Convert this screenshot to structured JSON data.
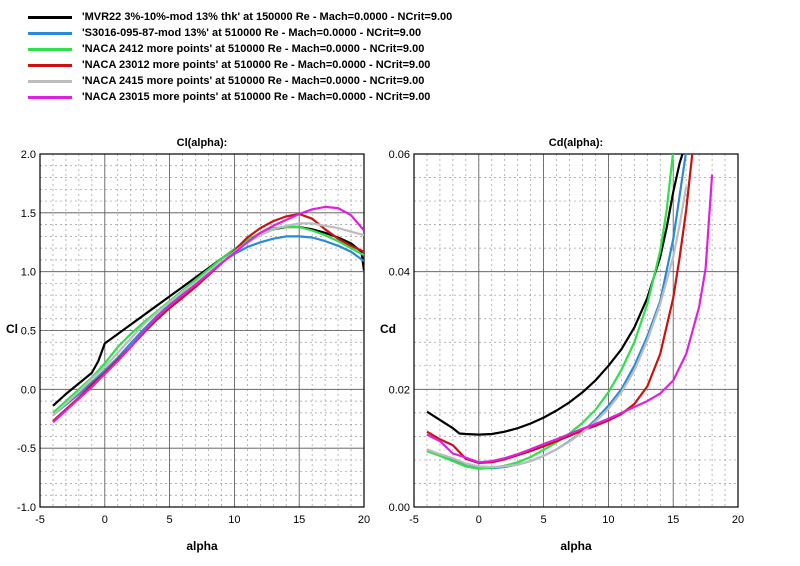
{
  "legend": [
    {
      "label": "'MVR22 3%-10%-mod 13% thk' at 150000 Re - Mach=0.0000 - NCrit=9.00",
      "color": "#000000"
    },
    {
      "label": "'S3016-095-87-mod 13%' at 510000 Re - Mach=0.0000 - NCrit=9.00",
      "color": "#2b8ad6"
    },
    {
      "label": "'NACA 2412 more points' at 510000 Re - Mach=0.0000 - NCrit=9.00",
      "color": "#2ee04a"
    },
    {
      "label": "'NACA 23012 more points' at 510000 Re - Mach=0.0000 - NCrit=9.00",
      "color": "#cc1111"
    },
    {
      "label": "'NACA 2415 more points' at 510000 Re - Mach=0.0000 - NCrit=9.00",
      "color": "#bdbdbd"
    },
    {
      "label": "'NACA 23015 more points' at 510000 Re - Mach=0.0000 - NCrit=9.00",
      "color": "#e020e0"
    }
  ],
  "chart_data": [
    {
      "type": "line",
      "title": "Cl(alpha):",
      "xlabel": "alpha",
      "ylabel": "Cl",
      "xlim": [
        -5,
        20
      ],
      "ylim": [
        -1.0,
        2.0
      ],
      "xticks": [
        -5,
        0,
        5,
        10,
        15,
        20
      ],
      "yticks": [
        -1.0,
        -0.5,
        0.0,
        0.5,
        1.0,
        1.5,
        2.0
      ],
      "ytick_labels": [
        "-1.0",
        "-0.5",
        "0.0",
        "0.5",
        "1.0",
        "1.5",
        "2.0"
      ],
      "series": [
        {
          "name": "MVR22 3%-10%-mod 13% thk",
          "color": "#000000",
          "x": [
            -4,
            -3,
            -2,
            -1,
            -0.5,
            0,
            1,
            2,
            3,
            4,
            5,
            6,
            7,
            8,
            9,
            10,
            11,
            12,
            13,
            14,
            15,
            16,
            17,
            18,
            19,
            19.8,
            20
          ],
          "y": [
            -0.14,
            -0.04,
            0.05,
            0.14,
            0.24,
            0.39,
            0.47,
            0.55,
            0.63,
            0.71,
            0.79,
            0.87,
            0.95,
            1.03,
            1.11,
            1.19,
            1.26,
            1.32,
            1.36,
            1.38,
            1.38,
            1.36,
            1.33,
            1.29,
            1.24,
            1.17,
            1.01
          ]
        },
        {
          "name": "S3016-095-87-mod 13%",
          "color": "#2b8ad6",
          "x": [
            -4,
            -3,
            -2,
            -1,
            0,
            1,
            2,
            3,
            4,
            5,
            6,
            7,
            8,
            9,
            10,
            11,
            12,
            13,
            14,
            15,
            16,
            17,
            18,
            19,
            20
          ],
          "y": [
            -0.22,
            -0.13,
            -0.04,
            0.06,
            0.16,
            0.27,
            0.39,
            0.51,
            0.62,
            0.72,
            0.82,
            0.91,
            1.0,
            1.08,
            1.15,
            1.21,
            1.25,
            1.28,
            1.3,
            1.3,
            1.29,
            1.26,
            1.22,
            1.17,
            1.09
          ]
        },
        {
          "name": "NACA 2412 more points",
          "color": "#2ee04a",
          "x": [
            -4,
            -3,
            -2,
            -1,
            0,
            1,
            2,
            3,
            4,
            5,
            6,
            7,
            8,
            9,
            10,
            11,
            12,
            13,
            14,
            15,
            16,
            17,
            18,
            19,
            20
          ],
          "y": [
            -0.2,
            -0.1,
            0.0,
            0.1,
            0.22,
            0.36,
            0.47,
            0.57,
            0.66,
            0.75,
            0.84,
            0.93,
            1.02,
            1.11,
            1.19,
            1.27,
            1.33,
            1.37,
            1.38,
            1.38,
            1.35,
            1.31,
            1.26,
            1.2,
            1.14
          ]
        },
        {
          "name": "NACA 23012 more points",
          "color": "#cc1111",
          "x": [
            -4,
            -3,
            -2,
            -1,
            0,
            1,
            2,
            3,
            4,
            5,
            6,
            7,
            8,
            9,
            10,
            11,
            12,
            13,
            14,
            15,
            16,
            17,
            18,
            19,
            20
          ],
          "y": [
            -0.27,
            -0.17,
            -0.07,
            0.04,
            0.14,
            0.25,
            0.36,
            0.48,
            0.59,
            0.69,
            0.78,
            0.87,
            0.97,
            1.07,
            1.18,
            1.29,
            1.37,
            1.43,
            1.47,
            1.49,
            1.45,
            1.36,
            1.28,
            1.22,
            1.17
          ]
        },
        {
          "name": "NACA 2415 more points",
          "color": "#bdbdbd",
          "x": [
            -4,
            -3,
            -2,
            -1,
            0,
            1,
            2,
            3,
            4,
            5,
            6,
            7,
            8,
            9,
            10,
            11,
            12,
            13,
            14,
            15,
            16,
            17,
            18,
            19,
            20
          ],
          "y": [
            -0.22,
            -0.12,
            -0.02,
            0.09,
            0.19,
            0.31,
            0.43,
            0.55,
            0.65,
            0.74,
            0.83,
            0.91,
            1.0,
            1.08,
            1.17,
            1.25,
            1.31,
            1.36,
            1.39,
            1.41,
            1.41,
            1.39,
            1.37,
            1.34,
            1.31
          ]
        },
        {
          "name": "NACA 23015 more points",
          "color": "#e020e0",
          "x": [
            -4,
            -3,
            -2,
            -1,
            0,
            1,
            2,
            3,
            4,
            5,
            6,
            7,
            8,
            9,
            10,
            11,
            12,
            13,
            14,
            15,
            16,
            17,
            18,
            19,
            20
          ],
          "y": [
            -0.28,
            -0.18,
            -0.08,
            0.02,
            0.13,
            0.24,
            0.36,
            0.49,
            0.61,
            0.71,
            0.8,
            0.89,
            0.98,
            1.07,
            1.16,
            1.25,
            1.33,
            1.39,
            1.44,
            1.49,
            1.53,
            1.55,
            1.54,
            1.48,
            1.35
          ]
        }
      ]
    },
    {
      "type": "line",
      "title": "Cd(alpha):",
      "xlabel": "alpha",
      "ylabel": "Cd",
      "xlim": [
        -5,
        20
      ],
      "ylim": [
        0.0,
        0.06
      ],
      "xticks": [
        -5,
        0,
        5,
        10,
        15,
        20
      ],
      "yticks": [
        0.0,
        0.02,
        0.04,
        0.06
      ],
      "ytick_labels": [
        "0.00",
        "0.02",
        "0.04",
        "0.06"
      ],
      "series": [
        {
          "name": "MVR22 3%-10%-mod 13% thk",
          "color": "#000000",
          "x": [
            -4,
            -3,
            -2,
            -1.5,
            -1,
            0,
            1,
            2,
            3,
            4,
            5,
            6,
            7,
            8,
            9,
            10,
            11,
            12,
            13,
            14,
            14.5,
            15,
            15.5,
            16
          ],
          "y": [
            0.0162,
            0.0148,
            0.0134,
            0.0125,
            0.0124,
            0.0123,
            0.0124,
            0.0128,
            0.0134,
            0.0142,
            0.0152,
            0.0164,
            0.0178,
            0.0195,
            0.0215,
            0.024,
            0.0268,
            0.0305,
            0.0355,
            0.0425,
            0.0475,
            0.0535,
            0.0585,
            0.062
          ]
        },
        {
          "name": "S3016-095-87-mod 13%",
          "color": "#2b8ad6",
          "x": [
            -4,
            -3,
            -2,
            -1,
            0,
            1,
            2,
            3,
            4,
            5,
            6,
            7,
            8,
            9,
            10,
            11,
            12,
            13,
            14,
            15,
            15.5,
            16
          ],
          "y": [
            0.0095,
            0.0088,
            0.0081,
            0.0073,
            0.0068,
            0.0066,
            0.0068,
            0.0072,
            0.0078,
            0.0087,
            0.0098,
            0.0112,
            0.0128,
            0.0148,
            0.0172,
            0.02,
            0.024,
            0.029,
            0.035,
            0.0455,
            0.053,
            0.0605
          ]
        },
        {
          "name": "NACA 2412 more points",
          "color": "#2ee04a",
          "x": [
            -4,
            -3,
            -2,
            -1,
            0,
            1,
            2,
            3,
            4,
            5,
            6,
            7,
            8,
            9,
            10,
            11,
            12,
            13,
            14,
            14.5,
            15
          ],
          "y": [
            0.0095,
            0.0087,
            0.0078,
            0.0069,
            0.0065,
            0.0067,
            0.007,
            0.0076,
            0.0085,
            0.0097,
            0.011,
            0.0125,
            0.0143,
            0.0165,
            0.0195,
            0.0233,
            0.028,
            0.0345,
            0.0435,
            0.0505,
            0.0605
          ]
        },
        {
          "name": "NACA 23012 more points",
          "color": "#cc1111",
          "x": [
            -4,
            -3,
            -2,
            -1,
            0,
            1,
            2,
            3,
            4,
            5,
            6,
            7,
            8,
            9,
            10,
            11,
            12,
            13,
            14,
            15,
            15.5,
            16,
            16.5
          ],
          "y": [
            0.0128,
            0.0115,
            0.0105,
            0.0082,
            0.0075,
            0.0076,
            0.0081,
            0.0088,
            0.0095,
            0.0103,
            0.0112,
            0.0121,
            0.013,
            0.0138,
            0.0147,
            0.0158,
            0.0175,
            0.0205,
            0.026,
            0.0355,
            0.0425,
            0.0505,
            0.0605
          ]
        },
        {
          "name": "NACA 2415 more points",
          "color": "#bdbdbd",
          "x": [
            -4,
            -3,
            -2,
            -1,
            0,
            1,
            2,
            3,
            4,
            5,
            6,
            7,
            8,
            9,
            10,
            11,
            12,
            13,
            14,
            15,
            15.5,
            16
          ],
          "y": [
            0.0098,
            0.009,
            0.0083,
            0.0074,
            0.0069,
            0.0068,
            0.0069,
            0.0072,
            0.0078,
            0.0087,
            0.0098,
            0.0111,
            0.0127,
            0.0145,
            0.0167,
            0.0195,
            0.0232,
            0.0283,
            0.0345,
            0.0425,
            0.048,
            0.0545
          ]
        },
        {
          "name": "NACA 23015 more points",
          "color": "#e020e0",
          "x": [
            -4,
            -3,
            -2,
            -1,
            0,
            1,
            2,
            3,
            4,
            5,
            6,
            7,
            8,
            9,
            10,
            11,
            12,
            13,
            14,
            15,
            16,
            17,
            17.5,
            18
          ],
          "y": [
            0.0123,
            0.0112,
            0.0091,
            0.0084,
            0.0076,
            0.0078,
            0.0083,
            0.009,
            0.0098,
            0.0107,
            0.0115,
            0.0124,
            0.0133,
            0.0141,
            0.015,
            0.016,
            0.017,
            0.018,
            0.0193,
            0.0215,
            0.026,
            0.034,
            0.0405,
            0.0565
          ]
        }
      ]
    }
  ]
}
